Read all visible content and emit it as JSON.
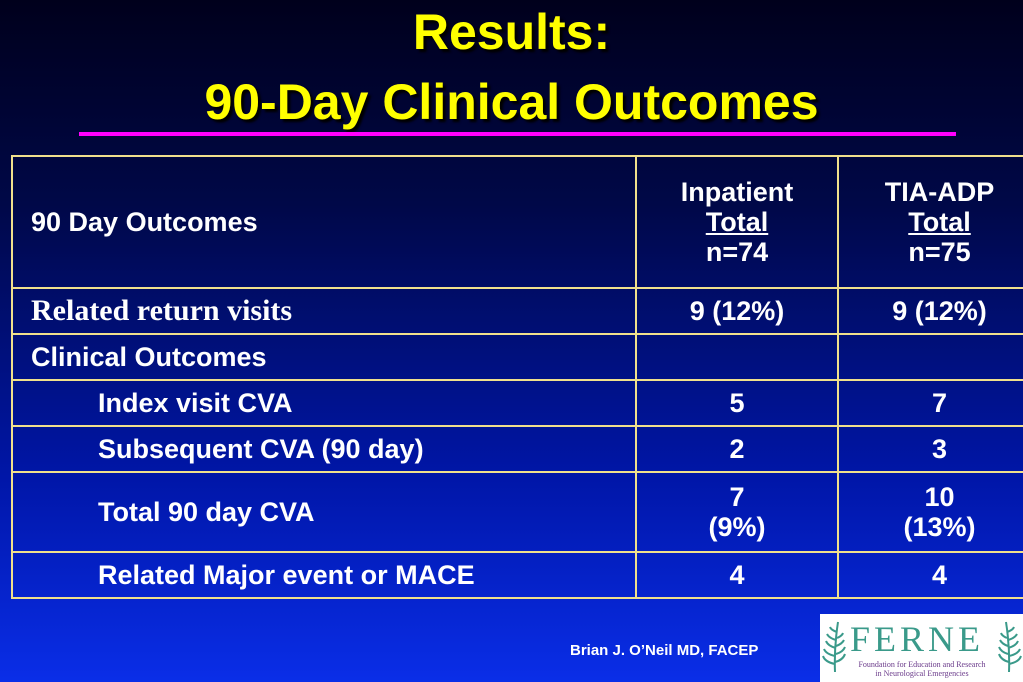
{
  "title": {
    "line1": "Results:",
    "line2": "90-Day Clinical Outcomes"
  },
  "table": {
    "header": {
      "label": "90 Day Outcomes",
      "col1": {
        "line1": "Inpatient",
        "line2": "Total",
        "line3": "n=74"
      },
      "col2": {
        "line1": "TIA-ADP",
        "line2": "Total",
        "line3": "n=75"
      }
    },
    "rows": [
      {
        "label": "Related return visits",
        "v1": "9 (12%)",
        "v2": "9 (12%)"
      },
      {
        "label": "Clinical Outcomes",
        "v1": "",
        "v2": ""
      },
      {
        "label": "Index visit CVA",
        "v1": "5",
        "v2": "7"
      },
      {
        "label": "Subsequent CVA (90 day)",
        "v1": "2",
        "v2": "3"
      },
      {
        "label": "Total 90 day  CVA",
        "v1a": "7",
        "v1b": "(9%)",
        "v2a": "10",
        "v2b": "(13%)"
      },
      {
        "label": "Related Major event or MACE",
        "v1": "4",
        "v2": "4"
      }
    ]
  },
  "footer": {
    "credit": "Brian J. O’Neil MD, FACEP",
    "logo_word": "FERNE",
    "logo_sub1": "Foundation for Education and Research",
    "logo_sub2": "in Neurological Emergencies"
  },
  "colors": {
    "title": "#ffff00",
    "underline": "#ff00ff",
    "table_border": "#f0e08c",
    "background_bottom": "#0a2ee8"
  }
}
